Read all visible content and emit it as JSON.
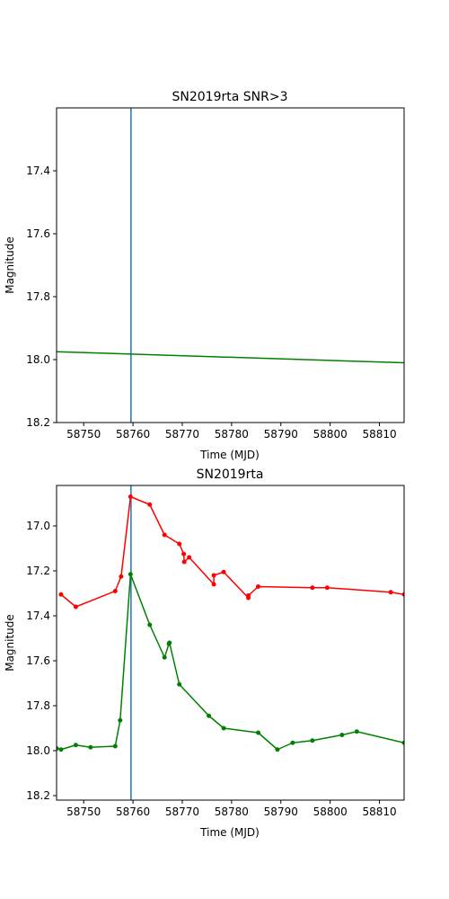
{
  "chart_data": [
    {
      "type": "line",
      "title": "SN2019rta SNR>3",
      "xlabel": "Time (MJD)",
      "ylabel": "Magnitude",
      "xlim": [
        58744.5,
        58815
      ],
      "ylim": [
        18.2,
        17.2
      ],
      "inverted_y": true,
      "xticks": [
        58750,
        58760,
        58770,
        58780,
        58790,
        58800,
        58810
      ],
      "yticks": [
        17.4,
        17.6,
        17.8,
        18.0,
        18.2
      ],
      "vline": {
        "x": 58759.6,
        "color": "#1f77b4"
      },
      "grid": false,
      "series": [
        {
          "color": "#008000",
          "markers": false,
          "points": [
            [
              58744.5,
              17.975
            ],
            [
              58815,
              18.01
            ]
          ]
        }
      ]
    },
    {
      "type": "line",
      "title": "SN2019rta",
      "xlabel": "Time (MJD)",
      "ylabel": "Magnitude",
      "xlim": [
        58744.5,
        58815
      ],
      "ylim": [
        18.22,
        16.82
      ],
      "inverted_y": true,
      "xticks": [
        58750,
        58760,
        58770,
        58780,
        58790,
        58800,
        58810
      ],
      "yticks": [
        17.0,
        17.2,
        17.4,
        17.6,
        17.8,
        18.0,
        18.2
      ],
      "vline": {
        "x": 58759.6,
        "color": "#1f77b4"
      },
      "grid": false,
      "series": [
        {
          "color": "#ff0000",
          "markers": true,
          "points": [
            [
              58745.4,
              17.305
            ],
            [
              58748.4,
              17.36
            ],
            [
              58756.4,
              17.29
            ],
            [
              58757.6,
              17.225
            ],
            [
              58759.5,
              16.87
            ],
            [
              58763.4,
              16.905
            ],
            [
              58766.4,
              17.04
            ],
            [
              58769.4,
              17.08
            ],
            [
              58770.3,
              17.125
            ],
            [
              58770.4,
              17.16
            ],
            [
              58771.4,
              17.14
            ],
            [
              58776.4,
              17.26
            ],
            [
              58776.4,
              17.22
            ],
            [
              58778.4,
              17.205
            ],
            [
              58783.4,
              17.32
            ],
            [
              58783.4,
              17.31
            ],
            [
              58785.4,
              17.27
            ],
            [
              58796.4,
              17.275
            ],
            [
              58799.4,
              17.275
            ],
            [
              58812.3,
              17.295
            ],
            [
              58815,
              17.305
            ]
          ]
        },
        {
          "color": "#008000",
          "markers": true,
          "points": [
            [
              58744.5,
              17.99
            ],
            [
              58745.4,
              17.995
            ],
            [
              58748.4,
              17.975
            ],
            [
              58751.4,
              17.985
            ],
            [
              58756.4,
              17.98
            ],
            [
              58757.4,
              17.865
            ],
            [
              58759.5,
              17.215
            ],
            [
              58763.4,
              17.44
            ],
            [
              58766.4,
              17.585
            ],
            [
              58767.3,
              17.525
            ],
            [
              58767.4,
              17.52
            ],
            [
              58769.4,
              17.705
            ],
            [
              58775.4,
              17.845
            ],
            [
              58778.4,
              17.9
            ],
            [
              58785.4,
              17.92
            ],
            [
              58789.3,
              17.995
            ],
            [
              58792.4,
              17.965
            ],
            [
              58796.4,
              17.955
            ],
            [
              58802.4,
              17.93
            ],
            [
              58805.4,
              17.915
            ],
            [
              58815,
              17.965
            ]
          ]
        }
      ]
    }
  ]
}
